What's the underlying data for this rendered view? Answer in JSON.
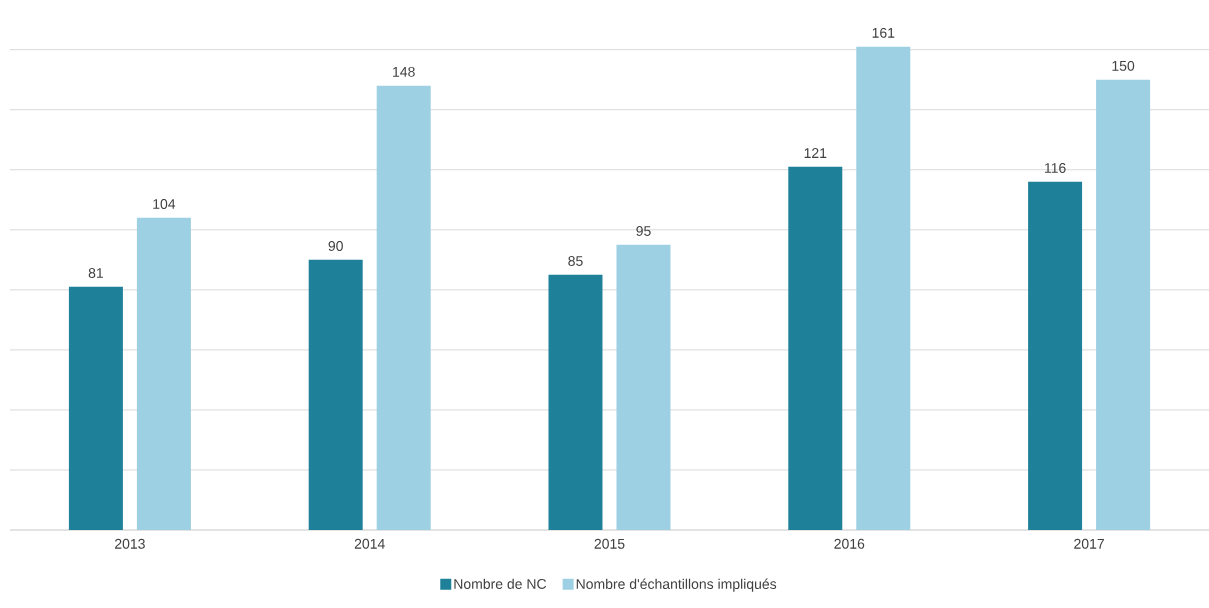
{
  "chart_data": {
    "type": "bar",
    "categories": [
      "2013",
      "2014",
      "2015",
      "2016",
      "2017"
    ],
    "series": [
      {
        "name": "Nombre de NC",
        "color": "#1f8199",
        "values": [
          81,
          90,
          85,
          121,
          116
        ]
      },
      {
        "name": "Nombre d'échantillons impliqués",
        "color": "#9dd0e3",
        "values": [
          104,
          148,
          95,
          161,
          150
        ]
      }
    ],
    "tick_labels": "x",
    "grid": "y",
    "data_labels": true,
    "legend": "bottom"
  }
}
